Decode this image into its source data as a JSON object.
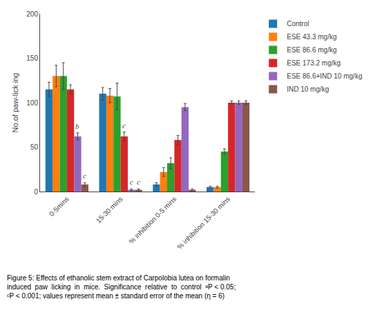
{
  "chart_data": {
    "type": "bar",
    "categories": [
      "0-5mins",
      "15-30 mins",
      "% inhibition 0-5 mins",
      "% inhibition 15-30 mins"
    ],
    "series": [
      {
        "name": "Control",
        "values": [
          115,
          110,
          8,
          5
        ],
        "errors": [
          8,
          7,
          2,
          1
        ]
      },
      {
        "name": "ESE 43.3 mg/kg",
        "values": [
          130,
          108,
          22,
          5
        ],
        "errors": [
          12,
          8,
          5,
          1
        ]
      },
      {
        "name": "ESE 86.6 mg/kg",
        "values": [
          130,
          107,
          32,
          45
        ],
        "errors": [
          15,
          15,
          6,
          3
        ]
      },
      {
        "name": "ESE 173.2 mg/kg",
        "values": [
          115,
          62,
          58,
          100
        ],
        "errors": [
          5,
          5,
          5,
          2
        ]
      },
      {
        "name": "ESE 86.6+IND 10 mg/kg",
        "values": [
          62,
          2,
          95,
          100
        ],
        "errors": [
          4,
          1,
          4,
          2
        ]
      },
      {
        "name": "IND 10 mg/kg",
        "values": [
          8,
          2,
          2,
          100
        ],
        "errors": [
          2,
          1,
          1,
          2
        ]
      }
    ],
    "ylabel": "No.of paw-lick ing",
    "ylim": [
      0,
      200
    ],
    "yticks": [
      0,
      50,
      100,
      150,
      200
    ],
    "grid": false,
    "legend": "upper right",
    "annotations": [
      {
        "category": "0-5mins",
        "series": "ESE 86.6+IND 10 mg/kg",
        "text": "b"
      },
      {
        "category": "0-5mins",
        "series": "IND 10 mg/kg",
        "text": "c"
      },
      {
        "category": "15-30 mins",
        "series": "ESE 173.2 mg/kg",
        "text": "c"
      },
      {
        "category": "15-30 mins",
        "series": "ESE 86.6+IND 10 mg/kg",
        "text": "c"
      },
      {
        "category": "15-30 mins",
        "series": "IND 10 mg/kg",
        "text": "c"
      }
    ],
    "caption": [
      "Figure 5: Effects of ethanolic stem extract of Carpolobia lutea on formalin",
      "induced  paw  licking  in  mice.  Significance  relative  to  control  ᵃP < 0.05;",
      "ᶜP < 0.001; values represent mean ± standard error of the mean (η = 6)"
    ]
  }
}
